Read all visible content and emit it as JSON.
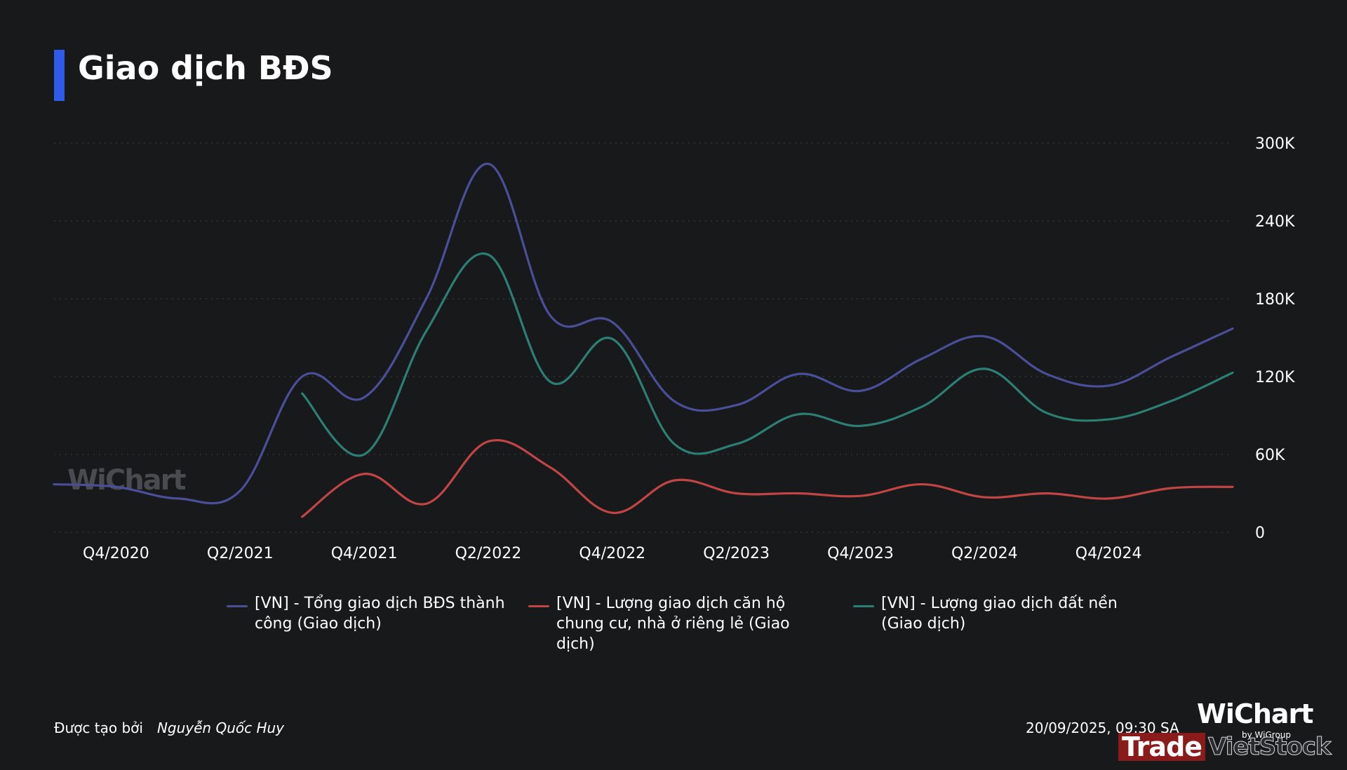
{
  "title": "Giao dịch BĐS",
  "watermark": "WiChart",
  "chart_data": {
    "type": "line",
    "title": "Giao dịch BĐS",
    "x": [
      "Q3/2020",
      "Q4/2020",
      "Q1/2021",
      "Q2/2021",
      "Q3/2021",
      "Q4/2021",
      "Q1/2022",
      "Q2/2022",
      "Q3/2022",
      "Q4/2022",
      "Q1/2023",
      "Q2/2023",
      "Q3/2023",
      "Q4/2023",
      "Q1/2024",
      "Q2/2024",
      "Q3/2024",
      "Q4/2024",
      "Q1/2025",
      "Q2/2025"
    ],
    "x_tick_labels": [
      "Q4/2020",
      "Q2/2021",
      "Q4/2021",
      "Q2/2022",
      "Q4/2022",
      "Q2/2023",
      "Q4/2023",
      "Q2/2024",
      "Q4/2024"
    ],
    "ylim": [
      0,
      300000
    ],
    "y_ticks": [
      0,
      60000,
      120000,
      180000,
      240000,
      300000
    ],
    "y_tick_labels": [
      "0",
      "60K",
      "120K",
      "180K",
      "240K",
      "300K"
    ],
    "y_axis_position": "right",
    "grid": true,
    "legend_position": "bottom",
    "series": [
      {
        "name": "[VN] - Tổng giao dịch BĐS thành công (Giao dịch)",
        "color": "#4a4f9a",
        "values": [
          37000,
          35000,
          26000,
          32000,
          120000,
          104000,
          180000,
          284000,
          167000,
          162000,
          101000,
          98000,
          122000,
          109000,
          134000,
          151000,
          122000,
          113000,
          135000,
          157000
        ]
      },
      {
        "name": "[VN] - Lượng giao dịch căn hộ chung cư, nhà ở riêng lẻ (Giao dịch)",
        "color": "#c24545",
        "values": [
          null,
          null,
          null,
          null,
          12000,
          45000,
          22000,
          70000,
          50000,
          15000,
          40000,
          30000,
          30000,
          28000,
          37000,
          27000,
          30000,
          26000,
          34000,
          35000
        ]
      },
      {
        "name": "[VN] - Lượng giao dịch đất nền (Giao dịch)",
        "color": "#2c7f74",
        "values": [
          null,
          null,
          null,
          null,
          107000,
          60000,
          155000,
          214000,
          116000,
          149000,
          68000,
          68000,
          91000,
          82000,
          97000,
          126000,
          92000,
          87000,
          101000,
          123000
        ]
      }
    ]
  },
  "footer": {
    "created_by_label": "Được tạo bởi",
    "author": "Nguyễn Quốc Huy",
    "timestamp": "20/09/2025, 09:30 SA",
    "brand": "WiChart",
    "brand_sub": "by WiGroup",
    "trade": "Trade",
    "vietstock": "VietStock"
  }
}
